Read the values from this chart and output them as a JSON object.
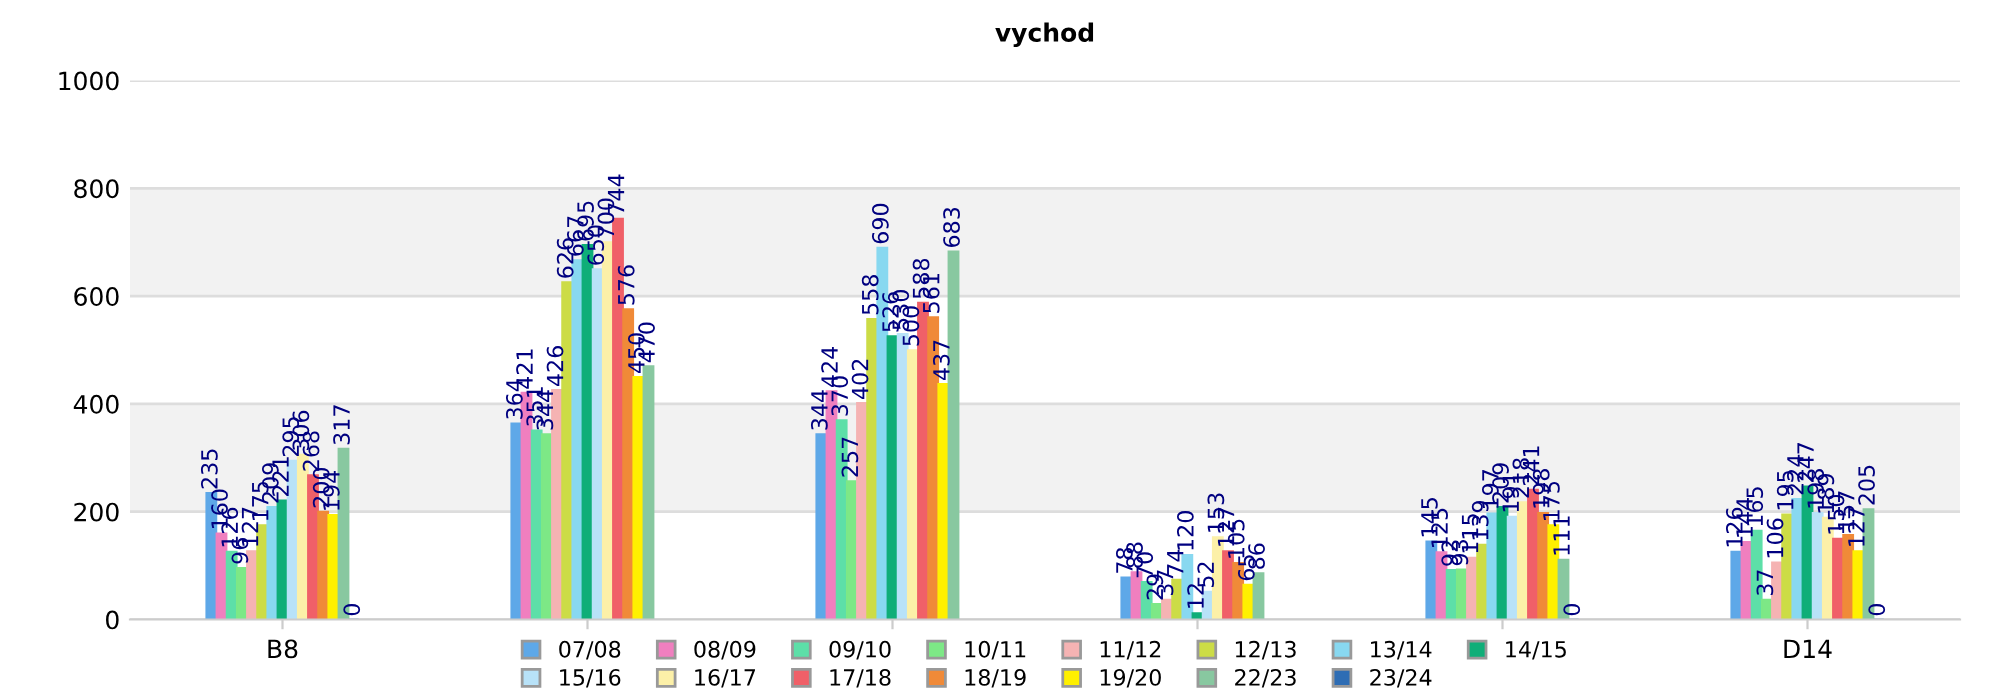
{
  "chart_data": {
    "type": "bar",
    "title": "vychod",
    "categories": [
      "B8",
      null,
      null,
      null,
      null,
      "D14"
    ],
    "ylim": [
      0,
      1000
    ],
    "yticks": [
      0,
      200,
      400,
      600,
      800,
      1000
    ],
    "grid": "y",
    "legend": "bottom",
    "data_labels": true,
    "bands": [
      {
        "axis": "y",
        "from": 200,
        "to": 400,
        "color": "#f2f2f2"
      },
      {
        "axis": "y",
        "from": 600,
        "to": 800,
        "color": "#f2f2f2"
      }
    ],
    "series": [
      {
        "name": "07/08",
        "color": "#5ea8e8",
        "values": [
          235,
          364,
          344,
          78,
          145,
          126
        ]
      },
      {
        "name": "08/09",
        "color": "#f07fbf",
        "values": [
          160,
          421,
          424,
          88,
          125,
          144
        ]
      },
      {
        "name": "09/10",
        "color": "#5ddfa8",
        "values": [
          126,
          351,
          370,
          70,
          92,
          165
        ]
      },
      {
        "name": "10/11",
        "color": "#7de886",
        "values": [
          96,
          344,
          257,
          29,
          93,
          37
        ]
      },
      {
        "name": "11/12",
        "color": "#f5b3b3",
        "values": [
          127,
          426,
          402,
          37,
          115,
          106
        ]
      },
      {
        "name": "12/13",
        "color": "#ccdc46",
        "values": [
          175,
          626,
          558,
          74,
          139,
          195
        ]
      },
      {
        "name": "13/14",
        "color": "#88d8f0",
        "values": [
          209,
          667,
          690,
          120,
          197,
          224
        ]
      },
      {
        "name": "14/15",
        "color": "#0fae78",
        "values": [
          221,
          695,
          526,
          12,
          209,
          247
        ]
      },
      {
        "name": "15/16",
        "color": "#b8e2f8",
        "values": [
          295,
          650,
          530,
          52,
          191,
          198
        ]
      },
      {
        "name": "16/17",
        "color": "#fcf0a8",
        "values": [
          306,
          700,
          500,
          153,
          218,
          189
        ]
      },
      {
        "name": "17/18",
        "color": "#f06068",
        "values": [
          268,
          744,
          588,
          127,
          241,
          150
        ]
      },
      {
        "name": "18/19",
        "color": "#f08a38",
        "values": [
          200,
          576,
          561,
          105,
          198,
          157
        ]
      },
      {
        "name": "19/20",
        "color": "#fff000",
        "values": [
          194,
          450,
          437,
          65,
          175,
          127
        ]
      },
      {
        "name": "22/23",
        "color": "#88c8a0",
        "values": [
          317,
          470,
          683,
          86,
          111,
          205
        ]
      },
      {
        "name": "23/24",
        "color": "#2e6db4",
        "values": [
          0,
          null,
          null,
          null,
          0,
          0
        ]
      }
    ]
  }
}
